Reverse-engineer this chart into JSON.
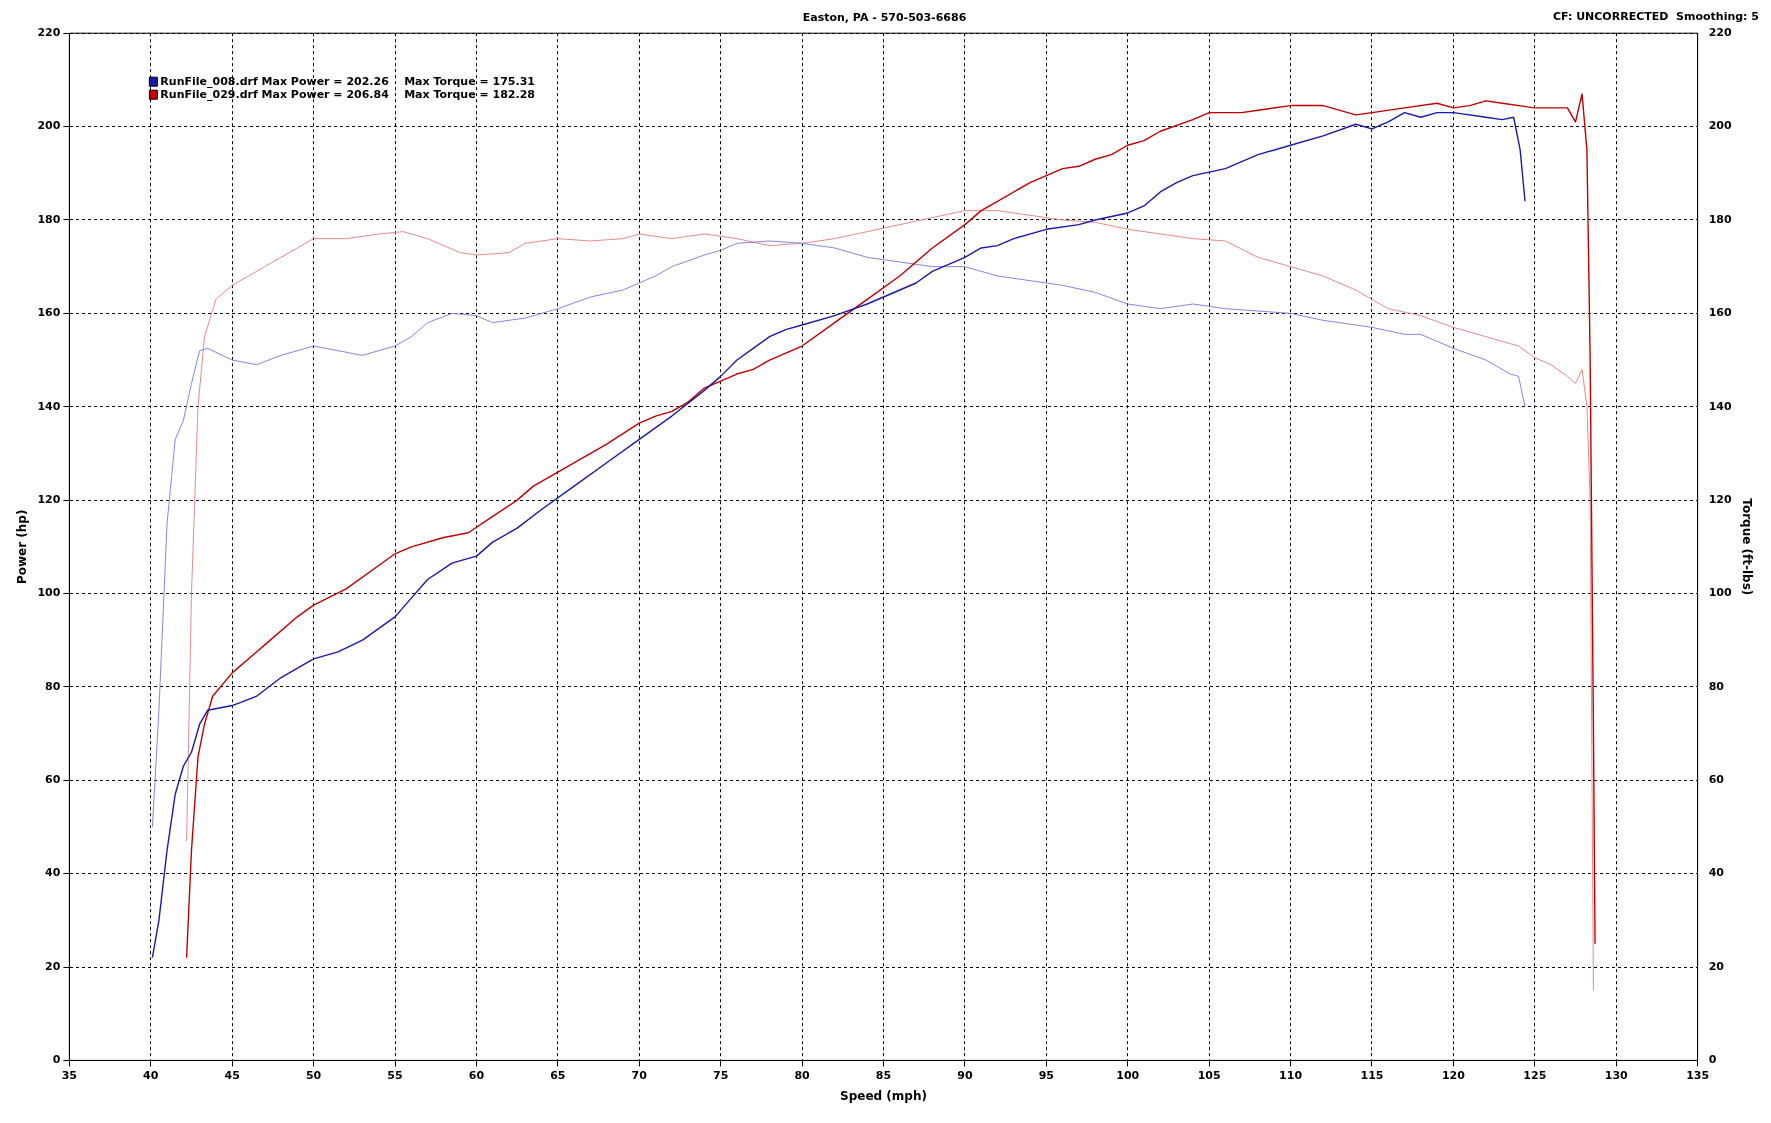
{
  "chart_data": {
    "type": "line",
    "subtitle": "Easton, PA - 570-503-6686",
    "xlabel": "Speed (mph)",
    "ylabel": "Power (hp)",
    "y2label": "Torque (ft-lbs)",
    "annotations": [
      "CF: UNCORRECTED  Smoothing: 5"
    ],
    "xlim": [
      35,
      135
    ],
    "xticks": [
      35,
      40,
      45,
      50,
      55,
      60,
      65,
      70,
      75,
      80,
      85,
      90,
      95,
      100,
      105,
      110,
      115,
      120,
      125,
      130,
      135
    ],
    "ylim": [
      0,
      220
    ],
    "yticks": [
      0,
      20,
      40,
      60,
      80,
      100,
      120,
      140,
      160,
      180,
      200,
      220
    ],
    "y2lim": [
      0,
      220
    ],
    "y2ticks": [
      0,
      20,
      40,
      60,
      80,
      100,
      120,
      140,
      160,
      180,
      200,
      220
    ],
    "grid": true,
    "legend": "top left",
    "marker": "none",
    "line_style": "solid",
    "series": [
      {
        "name": "RunFile_008.drf Max Power = 202.26    Max Torque = 175.31",
        "color": "#1a1aa8",
        "x": [
          40.1,
          40.5,
          41,
          41.5,
          42,
          42.5,
          43,
          43.5,
          45,
          46.5,
          48,
          50,
          51.5,
          53,
          55,
          56,
          57,
          58.5,
          60,
          61,
          62.5,
          64,
          66,
          68,
          70,
          72,
          74,
          75,
          76,
          77,
          78,
          79,
          80,
          82,
          84,
          85,
          86,
          87,
          88,
          90,
          91,
          92,
          93,
          95,
          97,
          98,
          100,
          101,
          102,
          103,
          104,
          106,
          108,
          110,
          112,
          114,
          115,
          116,
          117,
          118,
          119,
          120,
          122,
          123,
          123.7,
          124.1,
          124.4
        ],
        "values": [
          22,
          30,
          45,
          57,
          63,
          66,
          72,
          75,
          76,
          78,
          82,
          86,
          87.5,
          90,
          95,
          99,
          103,
          106.5,
          108,
          111,
          114,
          118,
          123,
          128,
          133,
          138,
          143.5,
          146.5,
          150,
          152.5,
          155,
          156.5,
          157.5,
          159.5,
          162,
          163.5,
          165,
          166.5,
          169,
          172,
          174,
          174.5,
          176,
          178,
          179,
          180,
          181.5,
          183,
          186,
          188,
          189.5,
          191,
          194,
          196,
          198,
          200.5,
          199.5,
          201,
          203,
          202,
          203,
          203,
          202,
          201.5,
          202,
          195,
          184
        ]
      },
      {
        "name": "RunFile_029.drf Max Power = 206.84    Max Torque = 182.28",
        "color": "#c00000",
        "x": [
          42.2,
          42.5,
          42.9,
          43.3,
          43.8,
          45,
          47,
          49,
          50,
          52,
          54,
          55,
          56,
          58,
          59.5,
          61,
          62.5,
          63.5,
          65,
          66.5,
          68,
          70,
          71,
          72,
          73,
          74,
          75,
          76,
          77,
          78,
          80,
          82,
          84,
          86,
          88,
          90,
          91,
          92,
          94,
          96,
          97,
          98,
          99,
          100,
          101,
          102,
          104,
          105,
          107,
          108,
          110,
          112,
          114,
          115,
          117,
          119,
          120,
          121,
          122,
          123,
          125,
          127,
          127.5,
          127.9,
          128.2,
          128.4,
          128.6,
          128.7
        ],
        "values": [
          22,
          45,
          65,
          72,
          78,
          83,
          89,
          95,
          97.5,
          101,
          106,
          108.5,
          110,
          112,
          113,
          116.5,
          120,
          123,
          126,
          129,
          132,
          136.5,
          138,
          139,
          141,
          144,
          145.5,
          147,
          148,
          150,
          153,
          158,
          163,
          168,
          174,
          179,
          182,
          184,
          188,
          191,
          191.5,
          193,
          194,
          196,
          197,
          199,
          201.5,
          203,
          203,
          203.5,
          204.5,
          204.5,
          202.5,
          203,
          204,
          205,
          204,
          204.5,
          205.5,
          205,
          204,
          204,
          201,
          207,
          195,
          150,
          71,
          25
        ]
      },
      {
        "color": "#8585e6",
        "axis": "y2",
        "x": [
          40.1,
          40.5,
          41,
          41.5,
          42,
          42.5,
          43,
          43.5,
          45,
          46.5,
          48,
          50,
          51.5,
          53,
          55,
          56,
          57,
          58.5,
          60,
          61,
          63,
          65,
          67,
          69,
          71,
          72,
          74,
          75,
          76,
          78,
          80,
          82,
          84,
          86,
          88,
          90,
          92,
          94,
          96,
          98,
          100,
          102,
          104,
          106,
          110,
          112,
          115,
          117,
          118,
          120,
          122,
          123.5,
          124,
          124.4
        ],
        "values": [
          50,
          75,
          115,
          133,
          137,
          145,
          152,
          152.5,
          150,
          149,
          151,
          153,
          152,
          151,
          153,
          155,
          158,
          160,
          159.5,
          158,
          159,
          161,
          163.5,
          165,
          168,
          170,
          172.5,
          173.5,
          175,
          175.5,
          175,
          174,
          172,
          171,
          170,
          170,
          168,
          167,
          166,
          164.5,
          162,
          161,
          162,
          161,
          160,
          158.5,
          157,
          155.5,
          155.5,
          152.5,
          150,
          147,
          146.5,
          140
        ]
      },
      {
        "color": "#e88a8a",
        "axis": "y2",
        "x": [
          42.2,
          42.5,
          42.9,
          43.3,
          44,
          45,
          47,
          49,
          50,
          52,
          54,
          55.5,
          57,
          59,
          60,
          62,
          63,
          65,
          67,
          69,
          70,
          72,
          74,
          76,
          78,
          80,
          82,
          84,
          86,
          88,
          90,
          92,
          94,
          96,
          98,
          100,
          102,
          104,
          106,
          108,
          110,
          112,
          114,
          116,
          118,
          120,
          122,
          124,
          125,
          126,
          127,
          127.5,
          127.9,
          128.2,
          128.4,
          128.6
        ],
        "values": [
          47,
          100,
          140,
          155,
          163,
          166,
          170,
          174,
          176,
          176,
          177,
          177.5,
          176,
          173,
          172.5,
          173,
          175,
          176,
          175.5,
          176,
          177,
          176,
          177,
          176,
          174.5,
          175,
          176,
          177.5,
          179,
          180.5,
          182,
          182,
          181,
          180,
          179.5,
          178,
          177,
          176,
          175.5,
          172,
          170,
          168,
          165,
          161,
          159.5,
          157,
          155,
          153,
          150.5,
          149,
          146.5,
          145,
          148,
          140,
          120,
          15
        ]
      }
    ]
  }
}
